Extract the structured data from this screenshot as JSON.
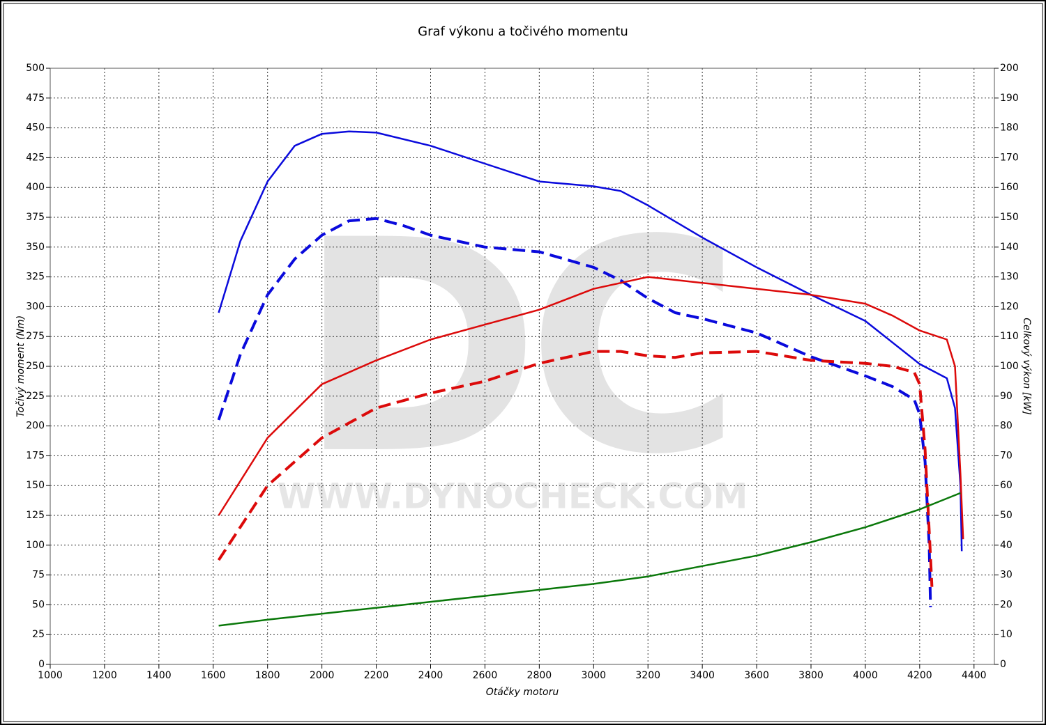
{
  "chart_data": {
    "type": "line",
    "title": "Graf výkonu a točivého momentu",
    "watermark": "DC",
    "watermark_url": "WWW.DYNOCHECK.COM",
    "x_label": "Otáčky motoru",
    "y_label": "Točivý moment (Nm)",
    "y2_label": "Celkový výkon [kW]",
    "xlim": [
      1000,
      4475
    ],
    "ylim": [
      0,
      500
    ],
    "y2lim": [
      0,
      200
    ],
    "xticks": [
      1000,
      1200,
      1400,
      1600,
      1800,
      2000,
      2200,
      2400,
      2600,
      2800,
      3000,
      3200,
      3400,
      3600,
      3800,
      4000,
      4200,
      4400
    ],
    "yticks": [
      0,
      25,
      50,
      75,
      100,
      125,
      150,
      175,
      200,
      225,
      250,
      275,
      300,
      325,
      350,
      375,
      400,
      425,
      450,
      475,
      500
    ],
    "y2ticks": [
      0,
      10,
      20,
      30,
      40,
      50,
      60,
      70,
      80,
      90,
      100,
      110,
      120,
      130,
      140,
      150,
      160,
      170,
      180,
      190,
      200
    ],
    "grid": true,
    "series": [
      {
        "color": "#0a0adc",
        "dashed": false,
        "axis": "y",
        "x": [
          1620,
          1700,
          1800,
          1900,
          2000,
          2100,
          2200,
          2400,
          2600,
          2800,
          3000,
          3100,
          3200,
          3400,
          3600,
          3800,
          4000,
          4100,
          4200,
          4300,
          4330,
          4350,
          4355
        ],
        "values": [
          295,
          355,
          405,
          435,
          445,
          447,
          446,
          435,
          420,
          405,
          401,
          397,
          385,
          358,
          333,
          310,
          288,
          270,
          252,
          240,
          215,
          150,
          95
        ]
      },
      {
        "color": "#0a0adc",
        "dashed": true,
        "axis": "y",
        "x": [
          1620,
          1700,
          1800,
          1900,
          2000,
          2100,
          2200,
          2300,
          2400,
          2600,
          2800,
          3000,
          3100,
          3200,
          3300,
          3400,
          3600,
          3800,
          4000,
          4100,
          4180,
          4200,
          4220,
          4235,
          4240
        ],
        "values": [
          205,
          260,
          310,
          340,
          360,
          372,
          374,
          368,
          360,
          350,
          346,
          333,
          322,
          307,
          295,
          290,
          278,
          258,
          242,
          233,
          222,
          210,
          170,
          100,
          48
        ]
      },
      {
        "color": "#dc0a0a",
        "dashed": false,
        "axis": "y2",
        "x": [
          1620,
          1800,
          2000,
          2200,
          2400,
          2600,
          2800,
          3000,
          3100,
          3200,
          3400,
          3600,
          3800,
          4000,
          4100,
          4200,
          4300,
          4330,
          4350,
          4360
        ],
        "values": [
          50,
          76,
          94,
          102,
          109,
          114,
          119,
          126,
          128,
          130,
          128,
          126,
          124,
          121,
          117,
          112,
          109,
          100,
          64,
          42
        ]
      },
      {
        "color": "#dc0a0a",
        "dashed": true,
        "axis": "y2",
        "x": [
          1620,
          1800,
          2000,
          2200,
          2400,
          2600,
          2800,
          3000,
          3100,
          3200,
          3300,
          3400,
          3600,
          3800,
          4000,
          4100,
          4180,
          4200,
          4220,
          4240,
          4245
        ],
        "values": [
          35,
          60,
          76,
          86,
          91,
          95,
          101,
          105,
          105,
          103.5,
          103,
          104.5,
          105,
          102,
          101,
          100,
          98,
          94,
          72,
          36,
          26
        ]
      },
      {
        "color": "#0a780a",
        "dashed": false,
        "axis": "y2",
        "x": [
          1620,
          1800,
          2000,
          2200,
          2400,
          2600,
          2800,
          3000,
          3200,
          3400,
          3600,
          3800,
          4000,
          4200,
          4350
        ],
        "values": [
          13,
          15,
          17,
          19,
          21,
          23,
          25,
          27,
          29.5,
          33,
          36.5,
          41,
          46,
          52,
          57.5
        ]
      }
    ]
  }
}
